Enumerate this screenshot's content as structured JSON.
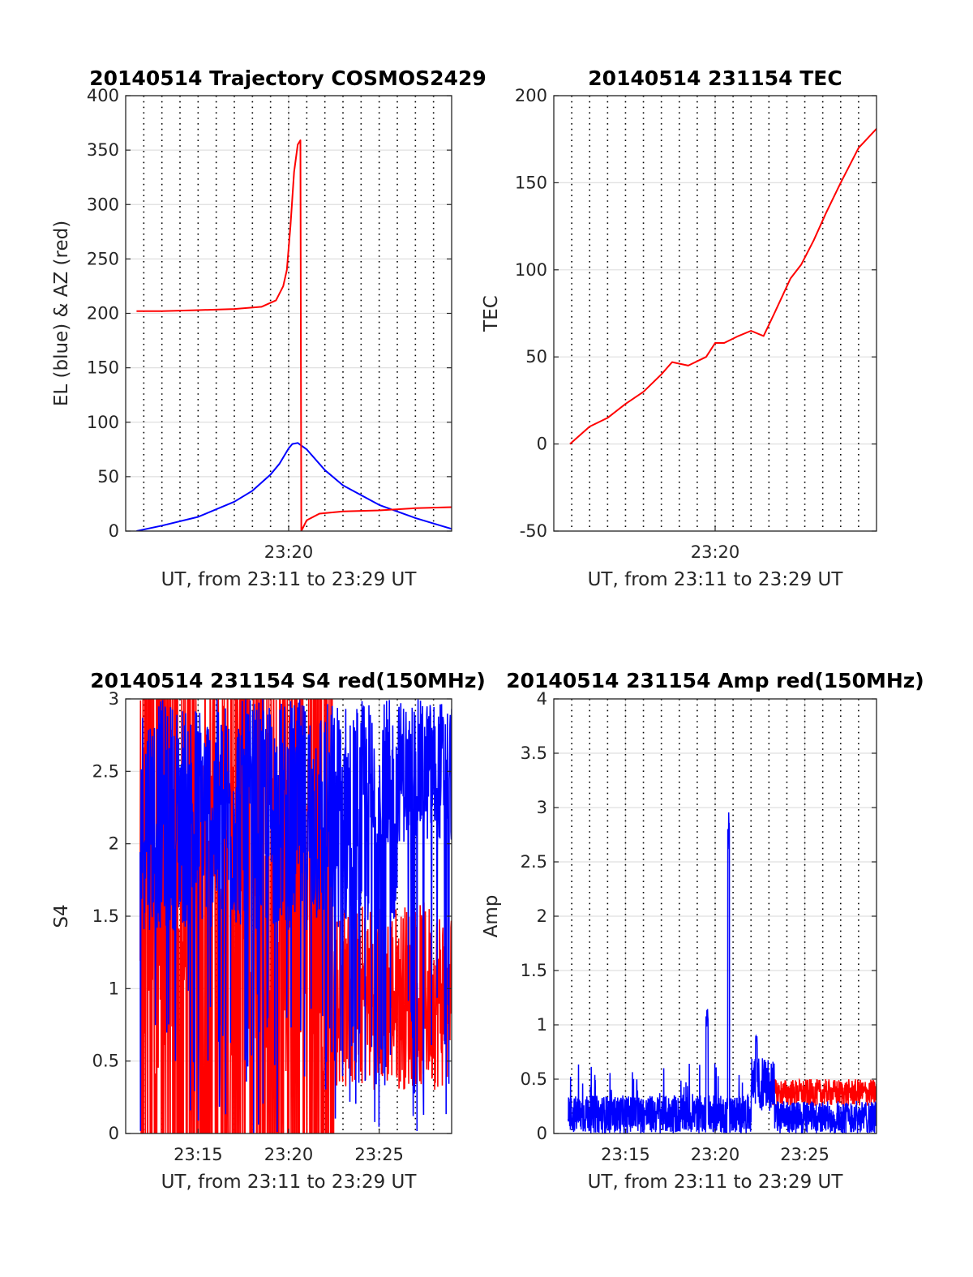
{
  "chart_data": [
    {
      "type": "line",
      "title": "20140514 Trajectory COSMOS2429",
      "xlabel": "UT, from 23:11 to 23:29 UT",
      "ylabel": "EL (blue) & AZ (red)",
      "xlim": [
        0,
        18
      ],
      "ylim": [
        0,
        400
      ],
      "xticks": [
        {
          "value": 9,
          "label": "23:20"
        }
      ],
      "yticks": [
        0,
        50,
        100,
        150,
        200,
        250,
        300,
        350,
        400
      ],
      "grid": true,
      "series": [
        {
          "color": "#0000ff",
          "x": [
            0.6,
            2,
            4,
            6,
            7,
            8,
            8.5,
            9,
            9.2,
            9.5,
            10,
            11,
            12,
            14,
            16,
            17.4,
            18
          ],
          "y": [
            0,
            5,
            13,
            27,
            37,
            52,
            62,
            76,
            80,
            81,
            75,
            56,
            42,
            24,
            12,
            5,
            2
          ]
        },
        {
          "color": "#ff0000",
          "x": [
            0.6,
            2,
            4,
            6,
            7.5,
            8.3,
            8.7,
            8.9,
            9.1,
            9.3,
            9.5,
            9.65,
            9.7,
            10,
            10.7,
            12,
            14,
            16,
            18
          ],
          "y": [
            202,
            202,
            203,
            204,
            206,
            212,
            225,
            240,
            280,
            330,
            355,
            359,
            0,
            10,
            16,
            18,
            19,
            21,
            22
          ]
        }
      ]
    },
    {
      "type": "line",
      "title": "20140514 231154 TEC",
      "xlabel": "UT, from 23:11 to 23:29 UT",
      "ylabel": "TEC",
      "xlim": [
        0,
        18
      ],
      "ylim": [
        -50,
        200
      ],
      "xticks": [
        {
          "value": 9,
          "label": "23:20"
        }
      ],
      "yticks": [
        -50,
        0,
        50,
        100,
        150,
        200
      ],
      "grid": true,
      "series": [
        {
          "color": "#ff0000",
          "x": [
            0.9,
            2,
            3,
            4,
            5,
            6,
            6.6,
            7.5,
            8.5,
            9,
            9.5,
            10.3,
            11,
            11.7,
            12.3,
            13.2,
            13.8,
            14.5,
            15.2,
            16,
            17,
            18
          ],
          "y": [
            0,
            10,
            15,
            23,
            30,
            40,
            47,
            45,
            50,
            58,
            58,
            62,
            65,
            62,
            75,
            95,
            103,
            117,
            133,
            150,
            170,
            181
          ]
        }
      ]
    },
    {
      "type": "line",
      "title": "20140514 231154 S4 red(150MHz)",
      "xlabel": "UT, from 23:11 to 23:29 UT",
      "ylabel": "S4",
      "xlim": [
        0,
        18
      ],
      "ylim": [
        0,
        3
      ],
      "xticks": [
        {
          "value": 4,
          "label": "23:15"
        },
        {
          "value": 9,
          "label": "23:20"
        },
        {
          "value": 14,
          "label": "23:25"
        }
      ],
      "yticks": [
        0,
        0.5,
        1,
        1.5,
        2,
        2.5,
        3
      ],
      "grid": true,
      "series": [
        {
          "color": "#ff0000",
          "x_start": 0.8,
          "x_end": 18,
          "range": [
            0,
            3
          ]
        },
        {
          "color": "#0000ff",
          "x_start": 0.8,
          "x_end": 18,
          "range": [
            0,
            3
          ]
        }
      ]
    },
    {
      "type": "line",
      "title": "20140514 231154 Amp red(150MHz)",
      "xlabel": "UT, from 23:11 to 23:29 UT",
      "ylabel": "Amp",
      "xlim": [
        0,
        18
      ],
      "ylim": [
        0,
        4
      ],
      "xticks": [
        {
          "value": 4,
          "label": "23:15"
        },
        {
          "value": 9,
          "label": "23:20"
        },
        {
          "value": 14,
          "label": "23:25"
        }
      ],
      "yticks": [
        0,
        0.5,
        1,
        1.5,
        2,
        2.5,
        3,
        3.5,
        4
      ],
      "grid": true,
      "series": [
        {
          "color": "#ff0000",
          "x": [
            12,
            14,
            16,
            18
          ],
          "y": [
            0.35,
            0.38,
            0.4,
            0.35
          ]
        },
        {
          "color": "#0000ff",
          "x": [
            0.8,
            8.5,
            8.6,
            8.7,
            9.7,
            9.75,
            9.8,
            11,
            11.3,
            12.3,
            18
          ],
          "y": [
            0.25,
            0.25,
            1.15,
            0.25,
            0.25,
            3.0,
            0.25,
            0.25,
            0.9,
            0.4,
            0.2
          ]
        }
      ]
    }
  ]
}
